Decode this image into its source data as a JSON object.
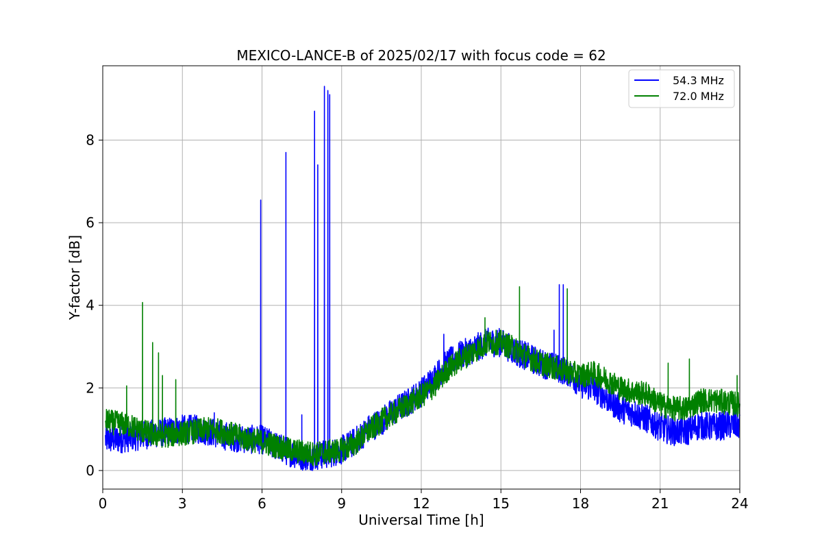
{
  "chart_data": {
    "type": "line",
    "title": "MEXICO-LANCE-B of 2025/02/17 with focus code = 62",
    "xlabel": "Universal Time [h]",
    "ylabel": "Y-factor [dB]",
    "xlim": [
      0,
      24
    ],
    "ylim": [
      -0.45,
      9.8
    ],
    "xticks": [
      0,
      3,
      6,
      9,
      12,
      15,
      18,
      21,
      24
    ],
    "yticks": [
      0,
      2,
      4,
      6,
      8
    ],
    "grid": true,
    "legend_position": "top-right",
    "series": [
      {
        "name": "54.3 MHz",
        "color": "#0000ff",
        "noise": 0.35,
        "x": [
          0.1,
          0.5,
          1.0,
          1.5,
          2.0,
          2.5,
          3.0,
          3.5,
          4.0,
          4.5,
          5.0,
          5.5,
          6.0,
          6.5,
          7.0,
          7.5,
          8.0,
          8.5,
          9.0,
          9.5,
          10.0,
          10.5,
          11.0,
          11.5,
          12.0,
          12.5,
          13.0,
          13.5,
          14.0,
          14.5,
          15.0,
          15.5,
          16.0,
          16.5,
          17.0,
          17.5,
          18.0,
          18.5,
          19.0,
          19.5,
          20.0,
          20.5,
          21.0,
          21.5,
          22.0,
          22.5,
          23.0,
          23.5,
          24.0
        ],
        "y": [
          0.75,
          0.75,
          0.8,
          0.85,
          0.9,
          0.95,
          1.0,
          1.0,
          0.95,
          0.85,
          0.8,
          0.75,
          0.75,
          0.6,
          0.45,
          0.35,
          0.35,
          0.4,
          0.5,
          0.7,
          1.0,
          1.2,
          1.45,
          1.65,
          1.9,
          2.25,
          2.6,
          2.8,
          2.95,
          3.1,
          3.1,
          2.9,
          2.75,
          2.6,
          2.5,
          2.4,
          2.1,
          2.0,
          1.75,
          1.5,
          1.4,
          1.25,
          1.05,
          0.95,
          0.95,
          1.1,
          1.05,
          1.1,
          1.1
        ],
        "spikes": [
          [
            5.95,
            6.55
          ],
          [
            6.9,
            7.7
          ],
          [
            7.98,
            8.7
          ],
          [
            8.1,
            7.4
          ],
          [
            8.35,
            9.3
          ],
          [
            8.48,
            9.2
          ],
          [
            8.55,
            9.1
          ],
          [
            17.2,
            4.5
          ],
          [
            17.35,
            4.5
          ],
          [
            17.0,
            3.4
          ],
          [
            12.85,
            3.3
          ],
          [
            7.5,
            1.35
          ],
          [
            4.2,
            1.4
          ]
        ]
      },
      {
        "name": "72.0 MHz",
        "color": "#008000",
        "noise": 0.3,
        "x": [
          0.1,
          0.5,
          1.0,
          1.5,
          2.0,
          2.5,
          3.0,
          3.5,
          4.0,
          4.5,
          5.0,
          5.5,
          6.0,
          6.5,
          7.0,
          7.5,
          8.0,
          8.5,
          9.0,
          9.5,
          10.0,
          10.5,
          11.0,
          11.5,
          12.0,
          12.5,
          13.0,
          13.5,
          14.0,
          14.5,
          15.0,
          15.5,
          16.0,
          16.5,
          17.0,
          17.5,
          18.0,
          18.5,
          19.0,
          19.5,
          20.0,
          20.5,
          21.0,
          21.5,
          22.0,
          22.5,
          23.0,
          23.5,
          24.0
        ],
        "y": [
          1.2,
          1.15,
          1.1,
          0.95,
          0.85,
          0.85,
          0.9,
          0.95,
          1.0,
          0.95,
          0.85,
          0.75,
          0.7,
          0.6,
          0.5,
          0.45,
          0.4,
          0.45,
          0.5,
          0.65,
          0.95,
          1.2,
          1.4,
          1.6,
          1.8,
          2.05,
          2.45,
          2.7,
          2.9,
          3.1,
          3.1,
          2.95,
          2.75,
          2.6,
          2.5,
          2.4,
          2.3,
          2.35,
          2.2,
          2.0,
          1.9,
          1.85,
          1.6,
          1.5,
          1.5,
          1.7,
          1.7,
          1.65,
          1.6
        ],
        "spikes": [
          [
            1.5,
            4.07
          ],
          [
            1.88,
            3.1
          ],
          [
            2.1,
            2.85
          ],
          [
            2.25,
            2.3
          ],
          [
            2.75,
            2.2
          ],
          [
            0.9,
            2.05
          ],
          [
            15.7,
            4.45
          ],
          [
            17.5,
            4.4
          ],
          [
            14.4,
            3.7
          ],
          [
            21.3,
            2.6
          ],
          [
            22.1,
            2.7
          ],
          [
            23.9,
            2.3
          ]
        ]
      }
    ]
  }
}
